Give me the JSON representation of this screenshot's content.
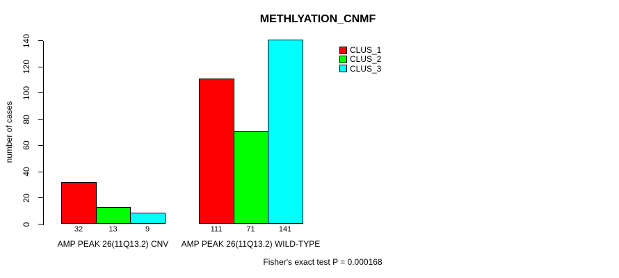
{
  "chart_data": {
    "type": "bar",
    "title": "METHLYATION_CNMF",
    "ylabel": "number of cases",
    "xlabel": "",
    "ylim": [
      0,
      140
    ],
    "yticks": [
      0,
      20,
      40,
      60,
      80,
      100,
      120,
      140
    ],
    "grid": false,
    "legend_position": "top-right",
    "bar_border_color": "#000000",
    "axis_color": "#000000",
    "background_color": "#ffffff",
    "categories": [
      "AMP PEAK 26(11Q13.2) CNV",
      "AMP PEAK 26(11Q13.2) WILD-TYPE"
    ],
    "series": [
      {
        "name": "CLUS_1",
        "color": "#ff0000",
        "values": [
          32,
          111
        ]
      },
      {
        "name": "CLUS_2",
        "color": "#00ff00",
        "values": [
          13,
          71
        ]
      },
      {
        "name": "CLUS_3",
        "color": "#00ffff",
        "values": [
          9,
          141
        ]
      }
    ],
    "groups": [
      {
        "label": "AMP PEAK 26(11Q13.2) CNV",
        "values": [
          32,
          13,
          9
        ]
      },
      {
        "label": "AMP PEAK 26(11Q13.2) WILD-TYPE",
        "values": [
          111,
          71,
          141
        ]
      }
    ],
    "bar_value_labels": [
      32,
      13,
      9,
      111,
      71,
      141
    ],
    "annotation": "Fisher's exact test P = 0.000168"
  }
}
